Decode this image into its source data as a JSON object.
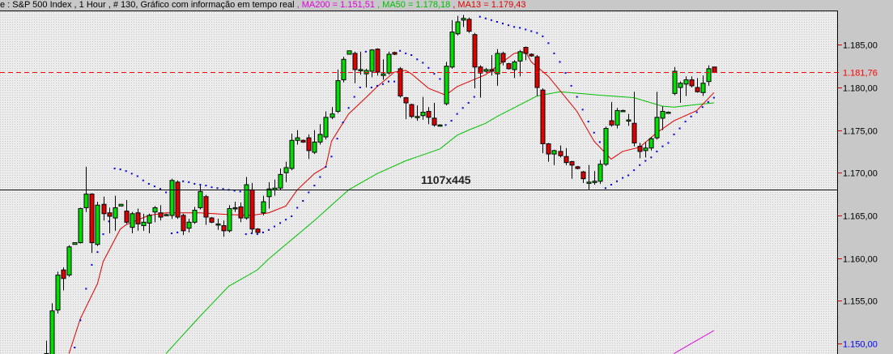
{
  "title": {
    "main": "e : S&P 500 Index , 1 Hour , # 130, Gráfico com informação em tempo real",
    "ma200": " , MA200 = 1.151,51",
    "ma50": " , MA50 = 1.178,18",
    "ma13": " , MA13 = 1.179,43"
  },
  "overlay_text": "1107x445",
  "colors": {
    "up": "#00e000",
    "down": "#e00000",
    "ma13": "#e00000",
    "ma50": "#00c000",
    "ma200": "#e000e0",
    "sar": "#0000e0",
    "plot_bg": "#e8e8e8",
    "panel": "#c8c8c8",
    "last_price": "#ff0000",
    "axis_min_label": "#0000ff"
  },
  "chart_data": {
    "type": "candlestick",
    "title": "S&P 500 Index , 1 Hour",
    "ylim": [
      1148.8,
      1189.0
    ],
    "y_ticks": [
      {
        "value": 1185,
        "label": "1.185,00"
      },
      {
        "value": 1180,
        "label": "1.180,00"
      },
      {
        "value": 1175,
        "label": "1.175,00"
      },
      {
        "value": 1170,
        "label": "1.170,00"
      },
      {
        "value": 1165,
        "label": "1.165,00"
      },
      {
        "value": 1160,
        "label": "1.160,00"
      },
      {
        "value": 1155,
        "label": "1.155,00"
      },
      {
        "value": 1150,
        "label": "1.150,00"
      }
    ],
    "last_price": {
      "value": 1181.76,
      "label": "1.181,76"
    },
    "crosshair_price": 1168.0,
    "ohlc": [
      [
        1147.5,
        1148.8,
        1150.3,
        1147.0
      ],
      [
        1148.5,
        1153.8,
        1154.7,
        1147.0
      ],
      [
        1153.9,
        1158.0,
        1158.4,
        1153.5
      ],
      [
        1158.6,
        1157.6,
        1158.9,
        1156.2
      ],
      [
        1158.0,
        1161.3,
        1161.5,
        1157.8
      ],
      [
        1161.6,
        1161.8,
        1161.8,
        1161.6
      ],
      [
        1161.8,
        1165.8,
        1165.9,
        1161.7
      ],
      [
        1165.9,
        1167.5,
        1170.7,
        1165.4
      ],
      [
        1167.5,
        1161.8,
        1167.6,
        1160.6
      ],
      [
        1161.6,
        1166.2,
        1166.6,
        1161.4
      ],
      [
        1166.3,
        1165.2,
        1167.2,
        1164.4
      ],
      [
        1165.3,
        1164.9,
        1165.9,
        1162.9
      ],
      [
        1164.7,
        1165.9,
        1167.3,
        1163.2
      ],
      [
        1166.1,
        1166.3,
        1166.3,
        1166.1
      ],
      [
        1165.5,
        1164.2,
        1166.8,
        1164.0
      ],
      [
        1163.6,
        1165.2,
        1165.4,
        1162.9
      ],
      [
        1165.3,
        1164.0,
        1165.8,
        1163.2
      ],
      [
        1163.8,
        1164.2,
        1165.2,
        1163.2
      ],
      [
        1164.1,
        1165.0,
        1165.2,
        1162.9
      ],
      [
        1165.4,
        1165.9,
        1166.1,
        1164.2
      ],
      [
        1165.3,
        1164.8,
        1166.2,
        1164.4
      ],
      [
        1165.1,
        1165.1,
        1165.2,
        1165.0
      ],
      [
        1165.0,
        1169.1,
        1169.3,
        1164.6
      ],
      [
        1168.9,
        1164.8,
        1169.1,
        1164.6
      ],
      [
        1165.0,
        1163.2,
        1165.2,
        1162.7
      ],
      [
        1163.5,
        1164.2,
        1164.6,
        1163.0
      ],
      [
        1164.2,
        1165.6,
        1166.0,
        1164.0
      ],
      [
        1165.9,
        1167.8,
        1168.6,
        1165.7
      ],
      [
        1167.2,
        1164.8,
        1167.4,
        1163.9
      ],
      [
        1164.7,
        1164.2,
        1164.8,
        1164.1
      ],
      [
        1164.0,
        1164.0,
        1164.6,
        1163.3
      ],
      [
        1163.8,
        1163.2,
        1164.4,
        1162.5
      ],
      [
        1163.2,
        1165.8,
        1166.2,
        1163.0
      ],
      [
        1165.9,
        1165.9,
        1166.6,
        1165.4
      ],
      [
        1166.0,
        1164.7,
        1166.5,
        1164.2
      ],
      [
        1164.7,
        1168.6,
        1169.5,
        1164.5
      ],
      [
        1168.0,
        1163.4,
        1168.8,
        1162.9
      ],
      [
        1163.4,
        1163.0,
        1163.5,
        1162.9
      ],
      [
        1165.3,
        1166.6,
        1167.3,
        1165.0
      ],
      [
        1167.2,
        1168.1,
        1168.9,
        1165.8
      ],
      [
        1168.0,
        1168.2,
        1169.2,
        1167.3
      ],
      [
        1168.2,
        1169.8,
        1170.5,
        1168.0
      ],
      [
        1170.0,
        1170.6,
        1171.3,
        1168.9
      ],
      [
        1170.5,
        1173.8,
        1174.6,
        1170.3
      ],
      [
        1173.8,
        1174.1,
        1175.0,
        1173.3
      ],
      [
        1173.8,
        1173.6,
        1173.9,
        1173.5
      ],
      [
        1174.1,
        1172.6,
        1174.5,
        1171.6
      ],
      [
        1172.4,
        1173.6,
        1175.0,
        1172.2
      ],
      [
        1173.6,
        1174.5,
        1175.7,
        1173.3
      ],
      [
        1174.2,
        1176.5,
        1177.2,
        1173.9
      ],
      [
        1176.5,
        1176.9,
        1177.7,
        1176.3
      ],
      [
        1177.2,
        1180.8,
        1182.1,
        1177.0
      ],
      [
        1180.9,
        1183.3,
        1183.6,
        1180.6
      ],
      [
        1183.9,
        1184.3,
        1184.3,
        1183.9
      ],
      [
        1184.0,
        1182.1,
        1184.2,
        1180.5
      ],
      [
        1182.1,
        1182.1,
        1184.2,
        1181.5
      ],
      [
        1181.6,
        1182.0,
        1182.2,
        1180.0
      ],
      [
        1181.9,
        1184.4,
        1184.5,
        1181.2
      ],
      [
        1184.5,
        1181.8,
        1184.6,
        1181.4
      ],
      [
        1181.4,
        1181.6,
        1183.3,
        1180.9
      ],
      [
        1181.7,
        1183.9,
        1184.2,
        1181.5
      ],
      [
        1184.1,
        1183.9,
        1184.2,
        1183.8
      ],
      [
        1182.2,
        1179.0,
        1182.4,
        1178.8
      ],
      [
        1178.8,
        1178.2,
        1178.9,
        1176.3
      ],
      [
        1178.0,
        1176.6,
        1178.1,
        1176.4
      ],
      [
        1176.6,
        1176.6,
        1177.9,
        1176.1
      ],
      [
        1176.7,
        1177.1,
        1178.9,
        1176.2
      ],
      [
        1177.2,
        1176.5,
        1177.7,
        1175.7
      ],
      [
        1176.4,
        1175.6,
        1178.2,
        1175.4
      ],
      [
        1175.6,
        1175.6,
        1175.7,
        1175.5
      ],
      [
        1178.1,
        1182.5,
        1183.0,
        1177.9
      ],
      [
        1182.4,
        1186.5,
        1187.9,
        1182.2
      ],
      [
        1186.3,
        1187.7,
        1188.4,
        1186.1
      ],
      [
        1187.9,
        1188.1,
        1188.5,
        1187.1
      ],
      [
        1188.0,
        1186.6,
        1188.2,
        1186.4
      ],
      [
        1186.2,
        1182.4,
        1186.4,
        1179.9
      ],
      [
        1182.4,
        1181.7,
        1182.6,
        1178.8
      ],
      [
        1181.9,
        1182.1,
        1182.3,
        1181.8
      ],
      [
        1182.1,
        1181.9,
        1183.8,
        1181.4
      ],
      [
        1181.6,
        1184.0,
        1184.5,
        1180.2
      ],
      [
        1184.0,
        1183.0,
        1184.2,
        1182.6
      ],
      [
        1182.8,
        1182.2,
        1182.9,
        1182.1
      ],
      [
        1182.1,
        1183.0,
        1183.2,
        1181.1
      ],
      [
        1183.1,
        1184.2,
        1184.4,
        1181.3
      ],
      [
        1184.7,
        1184.0,
        1184.8,
        1183.2
      ],
      [
        1183.9,
        1183.7,
        1184.0,
        1183.6
      ],
      [
        1183.6,
        1180.0,
        1183.8,
        1179.0
      ],
      [
        1179.7,
        1173.4,
        1179.9,
        1172.3
      ],
      [
        1173.4,
        1172.2,
        1173.5,
        1171.3
      ],
      [
        1172.2,
        1172.6,
        1172.7,
        1170.9
      ],
      [
        1172.5,
        1172.0,
        1173.2,
        1171.8
      ],
      [
        1171.9,
        1171.2,
        1172.9,
        1170.9
      ],
      [
        1171.3,
        1170.9,
        1171.4,
        1169.3
      ],
      [
        1170.7,
        1170.5,
        1170.8,
        1170.4
      ],
      [
        1170.1,
        1169.3,
        1170.2,
        1168.8
      ],
      [
        1168.9,
        1168.9,
        1170.9,
        1168.0
      ],
      [
        1169.0,
        1169.0,
        1170.2,
        1168.6
      ],
      [
        1169.0,
        1171.0,
        1171.5,
        1168.7
      ],
      [
        1171.0,
        1175.2,
        1175.4,
        1170.8
      ],
      [
        1176.1,
        1175.6,
        1178.3,
        1175.4
      ],
      [
        1175.6,
        1177.3,
        1177.6,
        1175.2
      ],
      [
        1177.3,
        1177.3,
        1177.4,
        1177.2
      ],
      [
        1176.2,
        1176.2,
        1176.9,
        1175.5
      ],
      [
        1175.8,
        1173.5,
        1179.5,
        1173.1
      ],
      [
        1173.1,
        1172.5,
        1173.5,
        1171.7
      ],
      [
        1172.6,
        1172.9,
        1173.6,
        1171.8
      ],
      [
        1172.9,
        1174.0,
        1174.2,
        1172.6
      ],
      [
        1174.1,
        1176.5,
        1179.5,
        1173.9
      ],
      [
        1176.4,
        1177.2,
        1177.8,
        1175.0
      ],
      [
        1177.1,
        1177.1,
        1177.2,
        1177.0
      ],
      [
        1179.3,
        1181.9,
        1182.4,
        1179.1
      ],
      [
        1180.0,
        1180.5,
        1180.7,
        1178.2
      ],
      [
        1180.4,
        1180.9,
        1181.3,
        1179.0
      ],
      [
        1180.9,
        1180.2,
        1181.3,
        1180.0
      ],
      [
        1180.0,
        1179.5,
        1181.1,
        1179.4
      ],
      [
        1179.4,
        1180.5,
        1181.4,
        1179.0
      ],
      [
        1180.7,
        1182.2,
        1182.6,
        1180.2
      ],
      [
        1182.4,
        1181.76,
        1182.4,
        1181.7
      ]
    ],
    "ma13": [
      [
        4,
        1148.8
      ],
      [
        6,
        1152.9
      ],
      [
        9,
        1157.0
      ],
      [
        10,
        1159.6
      ],
      [
        13,
        1163.4
      ],
      [
        14,
        1163.9
      ],
      [
        18,
        1165.0
      ],
      [
        21,
        1165.3
      ],
      [
        27,
        1165.3
      ],
      [
        32,
        1165.1
      ],
      [
        36,
        1165.0
      ],
      [
        39,
        1165.3
      ],
      [
        42,
        1166.1
      ],
      [
        44,
        1168.0
      ],
      [
        47,
        1169.9
      ],
      [
        49,
        1170.7
      ],
      [
        50,
        1173.7
      ],
      [
        53,
        1176.9
      ],
      [
        56,
        1178.8
      ],
      [
        58,
        1180.1
      ],
      [
        61,
        1181.8
      ],
      [
        63,
        1182.0
      ],
      [
        64,
        1181.6
      ],
      [
        67,
        1179.9
      ],
      [
        70,
        1179.1
      ],
      [
        72,
        1180.1
      ],
      [
        77,
        1181.5
      ],
      [
        78,
        1182.0
      ],
      [
        82,
        1184.0
      ],
      [
        84,
        1184.2
      ],
      [
        85,
        1183.0
      ],
      [
        88,
        1181.3
      ],
      [
        93,
        1177.2
      ],
      [
        96,
        1173.7
      ],
      [
        99,
        1171.6
      ],
      [
        101,
        1172.5
      ],
      [
        104,
        1173.0
      ],
      [
        107,
        1174.7
      ],
      [
        110,
        1176.1
      ],
      [
        114,
        1177.3
      ],
      [
        117,
        1179.4
      ]
    ],
    "ma50": [
      [
        21,
        1148.8
      ],
      [
        27,
        1153.2
      ],
      [
        32,
        1156.7
      ],
      [
        37,
        1158.6
      ],
      [
        39,
        1159.9
      ],
      [
        47,
        1164.4
      ],
      [
        53,
        1168.0
      ],
      [
        58,
        1169.9
      ],
      [
        63,
        1171.4
      ],
      [
        69,
        1172.8
      ],
      [
        72,
        1174.4
      ],
      [
        74,
        1175.0
      ],
      [
        77,
        1175.8
      ],
      [
        79,
        1176.6
      ],
      [
        86,
        1179.0
      ],
      [
        90,
        1179.5
      ],
      [
        97,
        1179.1
      ],
      [
        103,
        1178.8
      ],
      [
        108,
        1177.8
      ],
      [
        110,
        1177.7
      ],
      [
        114,
        1178.0
      ],
      [
        117,
        1178.2
      ]
    ],
    "ma200": [
      [
        110,
        1148.8
      ],
      [
        117,
        1151.5
      ]
    ],
    "sar": [
      [
        5,
        1149.5
      ],
      [
        6,
        1152.7
      ],
      [
        7,
        1156.4
      ],
      [
        8,
        1159.2
      ],
      [
        9,
        1160.7
      ],
      [
        10,
        1162.8
      ],
      [
        11,
        1164.3
      ],
      [
        12,
        1170.5
      ],
      [
        13,
        1170.4
      ],
      [
        14,
        1170.2
      ],
      [
        15,
        1169.9
      ],
      [
        16,
        1169.6
      ],
      [
        17,
        1169.1
      ],
      [
        18,
        1168.7
      ],
      [
        19,
        1168.4
      ],
      [
        20,
        1168.1
      ],
      [
        21,
        1167.7
      ],
      [
        22,
        1162.9
      ],
      [
        23,
        1163.0
      ],
      [
        24,
        1169.0
      ],
      [
        25,
        1168.9
      ],
      [
        26,
        1168.7
      ],
      [
        27,
        1168.6
      ],
      [
        28,
        1168.5
      ],
      [
        29,
        1168.3
      ],
      [
        30,
        1168.2
      ],
      [
        31,
        1168.1
      ],
      [
        32,
        1168.0
      ],
      [
        33,
        1167.9
      ],
      [
        34,
        1167.8
      ],
      [
        35,
        1162.8
      ],
      [
        36,
        1162.9
      ],
      [
        37,
        1162.8
      ],
      [
        38,
        1163.0
      ],
      [
        39,
        1163.3
      ],
      [
        40,
        1163.7
      ],
      [
        41,
        1164.1
      ],
      [
        42,
        1164.5
      ],
      [
        43,
        1164.9
      ],
      [
        44,
        1165.9
      ],
      [
        45,
        1166.7
      ],
      [
        46,
        1167.7
      ],
      [
        47,
        1168.5
      ],
      [
        48,
        1169.5
      ],
      [
        49,
        1170.7
      ],
      [
        50,
        1171.9
      ],
      [
        51,
        1174.0
      ],
      [
        52,
        1175.9
      ],
      [
        53,
        1177.6
      ],
      [
        54,
        1178.9
      ],
      [
        55,
        1180.0
      ],
      [
        56,
        1184.2
      ],
      [
        57,
        1180.0
      ],
      [
        58,
        1180.2
      ],
      [
        59,
        1180.4
      ],
      [
        60,
        1180.7
      ],
      [
        61,
        1180.7
      ],
      [
        62,
        1184.3
      ],
      [
        63,
        1184.0
      ],
      [
        64,
        1183.8
      ],
      [
        65,
        1183.3
      ],
      [
        66,
        1182.9
      ],
      [
        67,
        1182.3
      ],
      [
        68,
        1181.6
      ],
      [
        69,
        1181.0
      ],
      [
        70,
        1175.6
      ],
      [
        71,
        1176.1
      ],
      [
        72,
        1176.9
      ],
      [
        73,
        1177.6
      ],
      [
        74,
        1178.2
      ],
      [
        75,
        1178.9
      ],
      [
        76,
        1188.3
      ],
      [
        77,
        1188.1
      ],
      [
        78,
        1187.9
      ],
      [
        79,
        1187.7
      ],
      [
        80,
        1187.5
      ],
      [
        81,
        1187.3
      ],
      [
        82,
        1187.1
      ],
      [
        83,
        1187.0
      ],
      [
        84,
        1186.8
      ],
      [
        85,
        1186.6
      ],
      [
        86,
        1186.4
      ],
      [
        87,
        1186.0
      ],
      [
        88,
        1185.2
      ],
      [
        89,
        1184.0
      ],
      [
        90,
        1183.0
      ],
      [
        91,
        1181.7
      ],
      [
        92,
        1180.2
      ],
      [
        93,
        1178.9
      ],
      [
        94,
        1177.4
      ],
      [
        95,
        1176.0
      ],
      [
        96,
        1174.7
      ],
      [
        97,
        1173.6
      ],
      [
        98,
        1168.2
      ],
      [
        99,
        1168.6
      ],
      [
        100,
        1169.0
      ],
      [
        101,
        1169.4
      ],
      [
        102,
        1169.7
      ],
      [
        103,
        1170.3
      ],
      [
        104,
        1170.9
      ],
      [
        105,
        1171.4
      ],
      [
        106,
        1171.8
      ],
      [
        107,
        1172.5
      ],
      [
        108,
        1173.1
      ],
      [
        109,
        1173.5
      ],
      [
        110,
        1174.5
      ],
      [
        111,
        1175.2
      ],
      [
        112,
        1176.0
      ],
      [
        113,
        1176.6
      ],
      [
        114,
        1177.1
      ],
      [
        115,
        1177.7
      ],
      [
        116,
        1178.3
      ],
      [
        117,
        1178.8
      ]
    ]
  }
}
